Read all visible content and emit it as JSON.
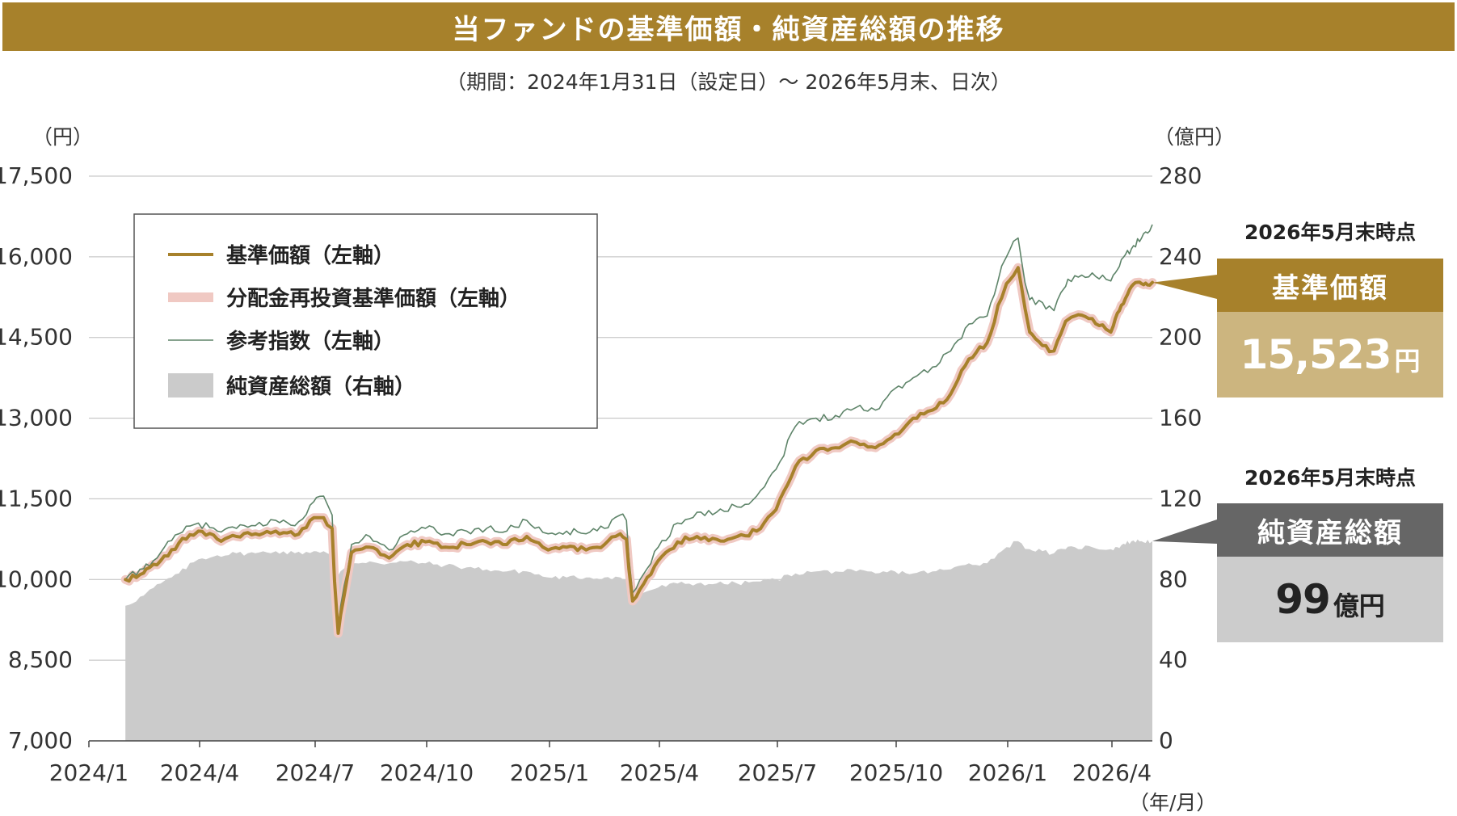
{
  "title": "当ファンドの基準価額・純資産総額の推移",
  "subtitle": "（期間：2024年1月31日（設定日）～ 2026年5月末、日次）",
  "colors": {
    "title_bg": "#a7812b",
    "nav": "#a7812b",
    "reinvested_nav": "#f0c9c3",
    "reference_index": "#5e8469",
    "net_assets": "#cbcbcb",
    "nav_label_bg": "#a7812b",
    "nav_value_bg": "#ccb57f",
    "assets_label_bg": "#666666",
    "assets_value_bg": "#cccccc"
  },
  "chart_data": {
    "type": "line",
    "left_axis": {
      "unit": "（円）",
      "min": 7000,
      "max": 17500,
      "ticks": [
        "7,000",
        "8,500",
        "10,000",
        "11,500",
        "13,000",
        "14,500",
        "16,000",
        "17,500"
      ],
      "tick_values": [
        7000,
        8500,
        10000,
        11500,
        13000,
        14500,
        16000,
        17500
      ]
    },
    "right_axis": {
      "unit": "（億円）",
      "min": 0,
      "max": 280,
      "ticks": [
        "0",
        "40",
        "80",
        "120",
        "160",
        "200",
        "240",
        "280"
      ],
      "tick_values": [
        0,
        40,
        80,
        120,
        160,
        200,
        240,
        280
      ]
    },
    "x_axis": {
      "unit": "（年/月）",
      "start": "2024-01-31",
      "end": "2026-05-31",
      "tick_labels": [
        "2024/1",
        "2024/4",
        "2024/7",
        "2024/10",
        "2025/1",
        "2025/4",
        "2025/7",
        "2025/10",
        "2026/1",
        "2026/4"
      ],
      "tick_dates": [
        "2024-01-01",
        "2024-04-01",
        "2024-07-01",
        "2024-10-01",
        "2025-01-01",
        "2025-04-01",
        "2025-07-01",
        "2025-10-01",
        "2026-01-01",
        "2026-04-01"
      ]
    },
    "grid": true,
    "legend_placement": "top-left",
    "series": [
      {
        "name": "基準価額（左軸）",
        "axis": "left",
        "points": [
          [
            "2024-01-31",
            10000
          ],
          [
            "2024-02-15",
            10120
          ],
          [
            "2024-02-29",
            10350
          ],
          [
            "2024-03-15",
            10680
          ],
          [
            "2024-03-31",
            10900
          ],
          [
            "2024-04-15",
            10750
          ],
          [
            "2024-04-30",
            10800
          ],
          [
            "2024-05-15",
            10850
          ],
          [
            "2024-05-31",
            10900
          ],
          [
            "2024-06-15",
            10820
          ],
          [
            "2024-06-30",
            11150
          ],
          [
            "2024-07-08",
            11150
          ],
          [
            "2024-07-15",
            10950
          ],
          [
            "2024-07-20",
            9000
          ],
          [
            "2024-07-31",
            10500
          ],
          [
            "2024-08-15",
            10600
          ],
          [
            "2024-08-31",
            10400
          ],
          [
            "2024-09-15",
            10650
          ],
          [
            "2024-09-30",
            10700
          ],
          [
            "2024-10-15",
            10600
          ],
          [
            "2024-10-31",
            10650
          ],
          [
            "2024-11-15",
            10700
          ],
          [
            "2024-11-30",
            10650
          ],
          [
            "2024-12-15",
            10800
          ],
          [
            "2024-12-31",
            10550
          ],
          [
            "2025-01-15",
            10600
          ],
          [
            "2025-01-31",
            10550
          ],
          [
            "2025-02-15",
            10650
          ],
          [
            "2025-02-28",
            10850
          ],
          [
            "2025-03-05",
            10750
          ],
          [
            "2025-03-10",
            9600
          ],
          [
            "2025-03-31",
            10350
          ],
          [
            "2025-04-15",
            10700
          ],
          [
            "2025-04-30",
            10800
          ],
          [
            "2025-05-15",
            10750
          ],
          [
            "2025-05-31",
            10800
          ],
          [
            "2025-06-15",
            10900
          ],
          [
            "2025-06-30",
            11300
          ],
          [
            "2025-07-15",
            12100
          ],
          [
            "2025-07-31",
            12400
          ],
          [
            "2025-08-15",
            12450
          ],
          [
            "2025-08-31",
            12550
          ],
          [
            "2025-09-15",
            12450
          ],
          [
            "2025-09-30",
            12700
          ],
          [
            "2025-10-15",
            13000
          ],
          [
            "2025-10-31",
            13150
          ],
          [
            "2025-11-15",
            13450
          ],
          [
            "2025-11-30",
            14100
          ],
          [
            "2025-12-15",
            14400
          ],
          [
            "2025-12-31",
            15500
          ],
          [
            "2026-01-10",
            15800
          ],
          [
            "2026-01-20",
            14600
          ],
          [
            "2026-01-31",
            14350
          ],
          [
            "2026-02-10",
            14250
          ],
          [
            "2026-02-20",
            14800
          ],
          [
            "2026-02-28",
            14900
          ],
          [
            "2026-03-15",
            14850
          ],
          [
            "2026-03-31",
            14600
          ],
          [
            "2026-04-15",
            15100
          ],
          [
            "2026-04-30",
            15450
          ],
          [
            "2026-05-15",
            15500
          ],
          [
            "2026-05-31",
            15523
          ]
        ]
      },
      {
        "name": "分配金再投資基準価額（左軸）",
        "axis": "left",
        "points": [
          [
            "2024-01-31",
            10000
          ],
          [
            "2024-02-15",
            10120
          ],
          [
            "2024-02-29",
            10350
          ],
          [
            "2024-03-15",
            10680
          ],
          [
            "2024-03-31",
            10900
          ],
          [
            "2024-04-15",
            10750
          ],
          [
            "2024-04-30",
            10800
          ],
          [
            "2024-05-15",
            10850
          ],
          [
            "2024-05-31",
            10900
          ],
          [
            "2024-06-15",
            10820
          ],
          [
            "2024-06-30",
            11150
          ],
          [
            "2024-07-08",
            11150
          ],
          [
            "2024-07-15",
            10950
          ],
          [
            "2024-07-20",
            9000
          ],
          [
            "2024-07-31",
            10500
          ],
          [
            "2024-08-15",
            10600
          ],
          [
            "2024-08-31",
            10400
          ],
          [
            "2024-09-15",
            10650
          ],
          [
            "2024-09-30",
            10700
          ],
          [
            "2024-10-15",
            10600
          ],
          [
            "2024-10-31",
            10650
          ],
          [
            "2024-11-15",
            10700
          ],
          [
            "2024-11-30",
            10650
          ],
          [
            "2024-12-15",
            10800
          ],
          [
            "2024-12-31",
            10550
          ],
          [
            "2025-01-15",
            10600
          ],
          [
            "2025-01-31",
            10550
          ],
          [
            "2025-02-15",
            10650
          ],
          [
            "2025-02-28",
            10850
          ],
          [
            "2025-03-05",
            10750
          ],
          [
            "2025-03-10",
            9600
          ],
          [
            "2025-03-31",
            10350
          ],
          [
            "2025-04-15",
            10700
          ],
          [
            "2025-04-30",
            10800
          ],
          [
            "2025-05-15",
            10750
          ],
          [
            "2025-05-31",
            10800
          ],
          [
            "2025-06-15",
            10900
          ],
          [
            "2025-06-30",
            11300
          ],
          [
            "2025-07-15",
            12100
          ],
          [
            "2025-07-31",
            12400
          ],
          [
            "2025-08-15",
            12450
          ],
          [
            "2025-08-31",
            12550
          ],
          [
            "2025-09-15",
            12450
          ],
          [
            "2025-09-30",
            12700
          ],
          [
            "2025-10-15",
            13000
          ],
          [
            "2025-10-31",
            13150
          ],
          [
            "2025-11-15",
            13450
          ],
          [
            "2025-11-30",
            14100
          ],
          [
            "2025-12-15",
            14400
          ],
          [
            "2025-12-31",
            15500
          ],
          [
            "2026-01-10",
            15800
          ],
          [
            "2026-01-20",
            14600
          ],
          [
            "2026-01-31",
            14350
          ],
          [
            "2026-02-10",
            14250
          ],
          [
            "2026-02-20",
            14800
          ],
          [
            "2026-02-28",
            14900
          ],
          [
            "2026-03-15",
            14850
          ],
          [
            "2026-03-31",
            14600
          ],
          [
            "2026-04-15",
            15100
          ],
          [
            "2026-04-30",
            15450
          ],
          [
            "2026-05-15",
            15500
          ],
          [
            "2026-05-31",
            15523
          ]
        ]
      },
      {
        "name": "参考指数（左軸）",
        "axis": "left",
        "points": [
          [
            "2024-01-31",
            10000
          ],
          [
            "2024-02-15",
            10200
          ],
          [
            "2024-02-29",
            10500
          ],
          [
            "2024-03-15",
            10850
          ],
          [
            "2024-03-31",
            11050
          ],
          [
            "2024-04-15",
            10900
          ],
          [
            "2024-04-30",
            10950
          ],
          [
            "2024-05-15",
            11000
          ],
          [
            "2024-05-31",
            11100
          ],
          [
            "2024-06-15",
            11000
          ],
          [
            "2024-06-30",
            11450
          ],
          [
            "2024-07-08",
            11550
          ],
          [
            "2024-07-15",
            11200
          ],
          [
            "2024-07-20",
            9050
          ],
          [
            "2024-07-31",
            10650
          ],
          [
            "2024-08-15",
            10800
          ],
          [
            "2024-08-31",
            10550
          ],
          [
            "2024-09-15",
            10850
          ],
          [
            "2024-09-30",
            10950
          ],
          [
            "2024-10-15",
            10850
          ],
          [
            "2024-10-31",
            10900
          ],
          [
            "2024-11-15",
            10950
          ],
          [
            "2024-11-30",
            10900
          ],
          [
            "2024-12-15",
            11100
          ],
          [
            "2024-12-31",
            10850
          ],
          [
            "2025-01-15",
            10900
          ],
          [
            "2025-01-31",
            10850
          ],
          [
            "2025-02-15",
            10950
          ],
          [
            "2025-02-28",
            11200
          ],
          [
            "2025-03-05",
            11100
          ],
          [
            "2025-03-10",
            9750
          ],
          [
            "2025-03-31",
            10600
          ],
          [
            "2025-04-15",
            11050
          ],
          [
            "2025-04-30",
            11250
          ],
          [
            "2025-05-15",
            11250
          ],
          [
            "2025-05-31",
            11350
          ],
          [
            "2025-06-15",
            11550
          ],
          [
            "2025-06-30",
            12050
          ],
          [
            "2025-07-15",
            12850
          ],
          [
            "2025-07-31",
            13000
          ],
          [
            "2025-08-15",
            13050
          ],
          [
            "2025-08-31",
            13200
          ],
          [
            "2025-09-15",
            13150
          ],
          [
            "2025-09-30",
            13550
          ],
          [
            "2025-10-15",
            13750
          ],
          [
            "2025-10-31",
            13950
          ],
          [
            "2025-11-15",
            14250
          ],
          [
            "2025-11-30",
            14750
          ],
          [
            "2025-12-15",
            14900
          ],
          [
            "2025-12-31",
            16000
          ],
          [
            "2026-01-10",
            16350
          ],
          [
            "2026-01-20",
            15200
          ],
          [
            "2026-01-31",
            15150
          ],
          [
            "2026-02-10",
            15000
          ],
          [
            "2026-02-20",
            15450
          ],
          [
            "2026-02-28",
            15650
          ],
          [
            "2026-03-15",
            15700
          ],
          [
            "2026-03-31",
            15550
          ],
          [
            "2026-04-15",
            15950
          ],
          [
            "2026-04-30",
            16150
          ],
          [
            "2026-05-15",
            16350
          ],
          [
            "2026-05-31",
            16600
          ]
        ]
      },
      {
        "name": "純資産総額（右軸）",
        "axis": "right",
        "type": "area",
        "points": [
          [
            "2024-01-31",
            67
          ],
          [
            "2024-02-15",
            72
          ],
          [
            "2024-02-29",
            78
          ],
          [
            "2024-03-15",
            83
          ],
          [
            "2024-03-31",
            90
          ],
          [
            "2024-04-15",
            92
          ],
          [
            "2024-04-30",
            93
          ],
          [
            "2024-05-15",
            93
          ],
          [
            "2024-05-31",
            94
          ],
          [
            "2024-06-15",
            93
          ],
          [
            "2024-06-30",
            94
          ],
          [
            "2024-07-08",
            94
          ],
          [
            "2024-07-15",
            92
          ],
          [
            "2024-07-20",
            82
          ],
          [
            "2024-07-31",
            88
          ],
          [
            "2024-08-15",
            89
          ],
          [
            "2024-08-31",
            88
          ],
          [
            "2024-09-15",
            89
          ],
          [
            "2024-09-30",
            88
          ],
          [
            "2024-10-15",
            87
          ],
          [
            "2024-10-31",
            86
          ],
          [
            "2024-11-15",
            85
          ],
          [
            "2024-11-30",
            84
          ],
          [
            "2024-12-15",
            84
          ],
          [
            "2024-12-31",
            81
          ],
          [
            "2025-01-15",
            81
          ],
          [
            "2025-01-31",
            81
          ],
          [
            "2025-02-15",
            81
          ],
          [
            "2025-02-28",
            81
          ],
          [
            "2025-03-05",
            80
          ],
          [
            "2025-03-10",
            72
          ],
          [
            "2025-03-31",
            76
          ],
          [
            "2025-04-15",
            78
          ],
          [
            "2025-04-30",
            78
          ],
          [
            "2025-05-15",
            78
          ],
          [
            "2025-05-31",
            78
          ],
          [
            "2025-06-15",
            79
          ],
          [
            "2025-06-30",
            80
          ],
          [
            "2025-07-15",
            83
          ],
          [
            "2025-07-31",
            84
          ],
          [
            "2025-08-15",
            84
          ],
          [
            "2025-08-31",
            84
          ],
          [
            "2025-09-15",
            83
          ],
          [
            "2025-09-30",
            84
          ],
          [
            "2025-10-15",
            83
          ],
          [
            "2025-10-31",
            84
          ],
          [
            "2025-11-15",
            85
          ],
          [
            "2025-11-30",
            88
          ],
          [
            "2025-12-15",
            88
          ],
          [
            "2025-12-31",
            96
          ],
          [
            "2026-01-10",
            99
          ],
          [
            "2026-01-20",
            95
          ],
          [
            "2026-01-31",
            94
          ],
          [
            "2026-02-10",
            93
          ],
          [
            "2026-02-20",
            95
          ],
          [
            "2026-02-28",
            96
          ],
          [
            "2026-03-15",
            96
          ],
          [
            "2026-03-31",
            95
          ],
          [
            "2026-04-15",
            97
          ],
          [
            "2026-04-30",
            99
          ],
          [
            "2026-05-15",
            99
          ],
          [
            "2026-05-31",
            99
          ]
        ]
      }
    ]
  },
  "legend": [
    {
      "label": "基準価額（左軸）",
      "swatch": "line"
    },
    {
      "label": "分配金再投資基準価額（左軸）",
      "swatch": "wide-line"
    },
    {
      "label": "参考指数（左軸）",
      "swatch": "thin-line"
    },
    {
      "label": "純資産総額（右軸）",
      "swatch": "box"
    }
  ],
  "callouts": {
    "nav": {
      "heading": "2026年5月末時点",
      "label": "基準価額",
      "value": "15,523",
      "unit": "円"
    },
    "assets": {
      "heading": "2026年5月末時点",
      "label": "純資産総額",
      "value": "99",
      "unit": "億円"
    }
  }
}
